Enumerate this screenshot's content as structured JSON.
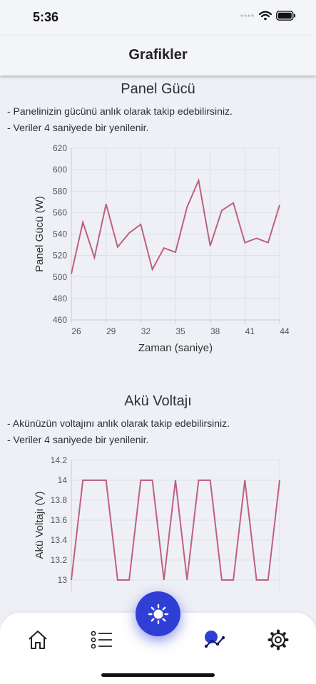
{
  "status_bar": {
    "time": "5:36"
  },
  "header": {
    "title": "Grafikler"
  },
  "sections": [
    {
      "title": "Panel Gücü",
      "lines": [
        "- Panelinizin gücünü anlık olarak takip edebilirsiniz.",
        "- Veriler 4 saniyede bir yenilenir."
      ]
    },
    {
      "title": "Akü Voltajı",
      "lines": [
        "- Akünüzün voltajını anlık olarak takip edebilirsiniz.",
        "- Veriler 4 saniyede bir yenilenir."
      ]
    }
  ],
  "chart_data": [
    {
      "type": "line",
      "xlabel": "Zaman (saniye)",
      "ylabel": "Panel Gücü (W)",
      "xlim": [
        26,
        44
      ],
      "ylim": [
        460,
        620
      ],
      "x_ticks": [
        26,
        29,
        32,
        35,
        38,
        41,
        44
      ],
      "y_ticks": [
        460,
        480,
        500,
        520,
        540,
        560,
        580,
        600,
        620
      ],
      "grid": true,
      "line_color": "#c0607c",
      "x": [
        26,
        27,
        28,
        29,
        30,
        31,
        32,
        33,
        34,
        35,
        36,
        37,
        38,
        39,
        40,
        41,
        42,
        43,
        44
      ],
      "y": [
        503,
        551,
        518,
        568,
        528,
        541,
        549,
        507,
        527,
        523,
        565,
        590,
        529,
        562,
        569,
        532,
        536,
        532,
        567
      ]
    },
    {
      "type": "line",
      "xlabel": "",
      "ylabel": "Akü Voltajı (V)",
      "xlim": [
        26,
        44
      ],
      "ylim": [
        12.9,
        14.2
      ],
      "y_ticks": [
        13,
        13.2,
        13.4,
        13.6,
        13.8,
        14,
        14.2
      ],
      "grid": true,
      "line_color": "#c0607c",
      "x": [
        26,
        27,
        28,
        29,
        30,
        31,
        32,
        33,
        34,
        35,
        36,
        37,
        38,
        39,
        40,
        41,
        42,
        43,
        44
      ],
      "y": [
        13,
        14,
        14,
        14,
        13,
        13,
        14,
        14,
        13,
        14,
        13,
        14,
        14,
        13,
        13,
        14,
        13,
        13,
        14
      ]
    }
  ],
  "tab_bar": {
    "items": [
      "home-icon",
      "list-icon",
      "sun-icon",
      "chart-icon",
      "gear-icon"
    ],
    "active": "chart-icon",
    "accent": "#2f3fd6"
  }
}
